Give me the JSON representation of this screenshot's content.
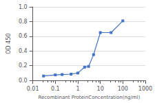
{
  "chart_data": {
    "type": "line",
    "x": [
      0.03,
      0.1,
      0.2,
      0.5,
      1,
      2,
      3,
      5,
      10,
      30,
      100
    ],
    "values": [
      0.06,
      0.075,
      0.08,
      0.085,
      0.1,
      0.18,
      0.19,
      0.35,
      0.65,
      0.65,
      0.81
    ],
    "color": "#4472c4",
    "marker": "square",
    "xlabel": "Recombinant ProteinConcentration(ng/ml)",
    "ylabel": "OD 450",
    "log": "x",
    "xlim": [
      0.01,
      1000
    ],
    "xticks": [
      0.01,
      0.1,
      1,
      10,
      100,
      1000
    ],
    "ylim": [
      0,
      1
    ],
    "yticks": [
      {
        "value": 0,
        "label": "0.0"
      },
      0.2,
      0.4,
      0.6,
      0.8,
      {
        "value": 1,
        "label": "1.0"
      }
    ],
    "grid": "y"
  }
}
